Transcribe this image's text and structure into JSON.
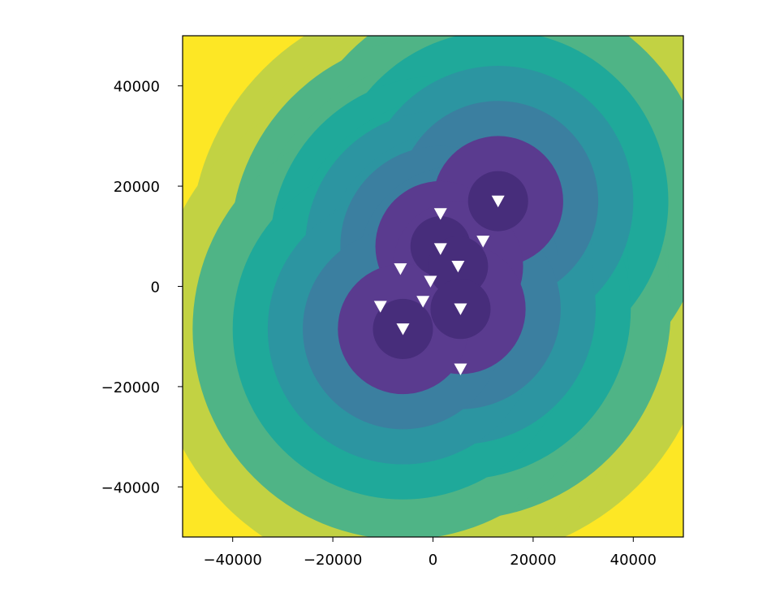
{
  "chart_data": {
    "type": "heatmap",
    "subtype": "filled-contour with markers",
    "xlim": [
      -50000,
      50000
    ],
    "ylim": [
      -50000,
      50000
    ],
    "x_ticks": [
      {
        "value": -40000,
        "label": "−40000"
      },
      {
        "value": -20000,
        "label": "−20000"
      },
      {
        "value": 0,
        "label": "0"
      },
      {
        "value": 20000,
        "label": "20000"
      },
      {
        "value": 40000,
        "label": "40000"
      }
    ],
    "y_ticks": [
      {
        "value": -40000,
        "label": "−40000"
      },
      {
        "value": -20000,
        "label": "−20000"
      },
      {
        "value": 0,
        "label": "0"
      },
      {
        "value": 20000,
        "label": "20000"
      },
      {
        "value": 40000,
        "label": "40000"
      }
    ],
    "grid": false,
    "colormap": "viridis",
    "level_colors": [
      "#472d7b",
      "#5a3b8f",
      "#3b7fa0",
      "#2c95a1",
      "#1fa99a",
      "#4fb486",
      "#c2d243",
      "#fde725"
    ],
    "contour_level_widths": [
      6000,
      13000,
      20000,
      27000,
      34000,
      42000,
      50000
    ],
    "contour_centers": [
      [
        13000,
        17000
      ],
      [
        1500,
        8000
      ],
      [
        5000,
        4000
      ],
      [
        5500,
        -4500
      ],
      [
        -6000,
        -8500
      ]
    ],
    "marker_style": {
      "shape": "triangle-down",
      "color": "#ffffff"
    },
    "markers": [
      {
        "x": 13000,
        "y": 17000
      },
      {
        "x": 1500,
        "y": 14500
      },
      {
        "x": 1500,
        "y": 7500
      },
      {
        "x": 10000,
        "y": 9000
      },
      {
        "x": 5000,
        "y": 4000
      },
      {
        "x": -6500,
        "y": 3500
      },
      {
        "x": -500,
        "y": 1000
      },
      {
        "x": -2000,
        "y": -3000
      },
      {
        "x": -10500,
        "y": -4000
      },
      {
        "x": 5500,
        "y": -4500
      },
      {
        "x": -6000,
        "y": -8500
      },
      {
        "x": 5500,
        "y": -16500
      }
    ]
  }
}
